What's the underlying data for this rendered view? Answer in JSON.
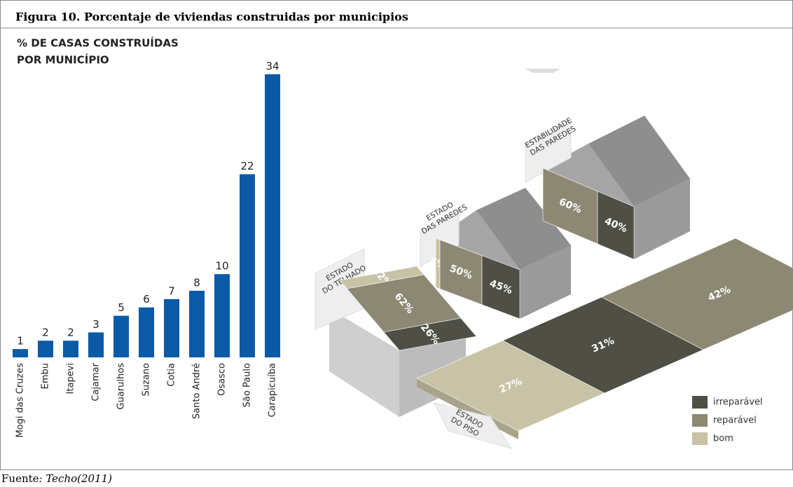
{
  "caption": "Figura 10. Porcentaje de viviendas construidas por municipios",
  "source_label": "Fuente",
  "source_text": ": Techo(2011)",
  "chart_data": {
    "type": "bar",
    "title": [
      "% DE CASAS CONSTRUÍDAS",
      "POR MUNICÍPIO"
    ],
    "categories": [
      "Mogi das Cruzes",
      "Embu",
      "Itapevi",
      "Cajamar",
      "Guarulhos",
      "Suzano",
      "Cotia",
      "Santo André",
      "Osasco",
      "São Paulo",
      "Carapicuíba"
    ],
    "values": [
      1,
      2,
      2,
      3,
      5,
      6,
      7,
      8,
      10,
      22,
      34
    ],
    "color": "#0b5aa8",
    "ylim": [
      0,
      34
    ]
  },
  "infographic": {
    "roof": {
      "label": [
        "ESTADO",
        "DO TELHADO"
      ],
      "segments": [
        {
          "value": 12,
          "value_label": "12%",
          "color": "#c8c2a6"
        },
        {
          "value": 62,
          "value_label": "62%",
          "color": "#8d8874"
        },
        {
          "value": 26,
          "value_label": "26%",
          "color": "#4f4f45"
        }
      ]
    },
    "walls": {
      "label": [
        "ESTADO",
        "DAS PAREDES"
      ],
      "segments": [
        {
          "value": 5,
          "value_label": "5%",
          "color": "#c8c2a6"
        },
        {
          "value": 50,
          "value_label": "50%",
          "color": "#8d8874"
        },
        {
          "value": 45,
          "value_label": "45%",
          "color": "#4f4f45"
        }
      ]
    },
    "stability": {
      "label": [
        "ESTABILIDADE",
        "DAS PAREDES"
      ],
      "segments": [
        {
          "value": 60,
          "value_label": "60%",
          "color": "#8d8874"
        },
        {
          "value": 40,
          "value_label": "40%",
          "color": "#4f4f45"
        }
      ]
    },
    "floor": {
      "label": [
        "ESTADO",
        "DO PISO"
      ],
      "segments": [
        {
          "value": 27,
          "value_label": "27%",
          "color": "#c8c2a6"
        },
        {
          "value": 31,
          "value_label": "31%",
          "color": "#4f4f45"
        },
        {
          "value": 42,
          "value_label": "42%",
          "color": "#8d8874"
        }
      ]
    },
    "legend": [
      {
        "label": "irreparável",
        "color": "#4f4f45"
      },
      {
        "label": "reparável",
        "color": "#8d8874"
      },
      {
        "label": "bom",
        "color": "#c8c2a6"
      }
    ]
  }
}
